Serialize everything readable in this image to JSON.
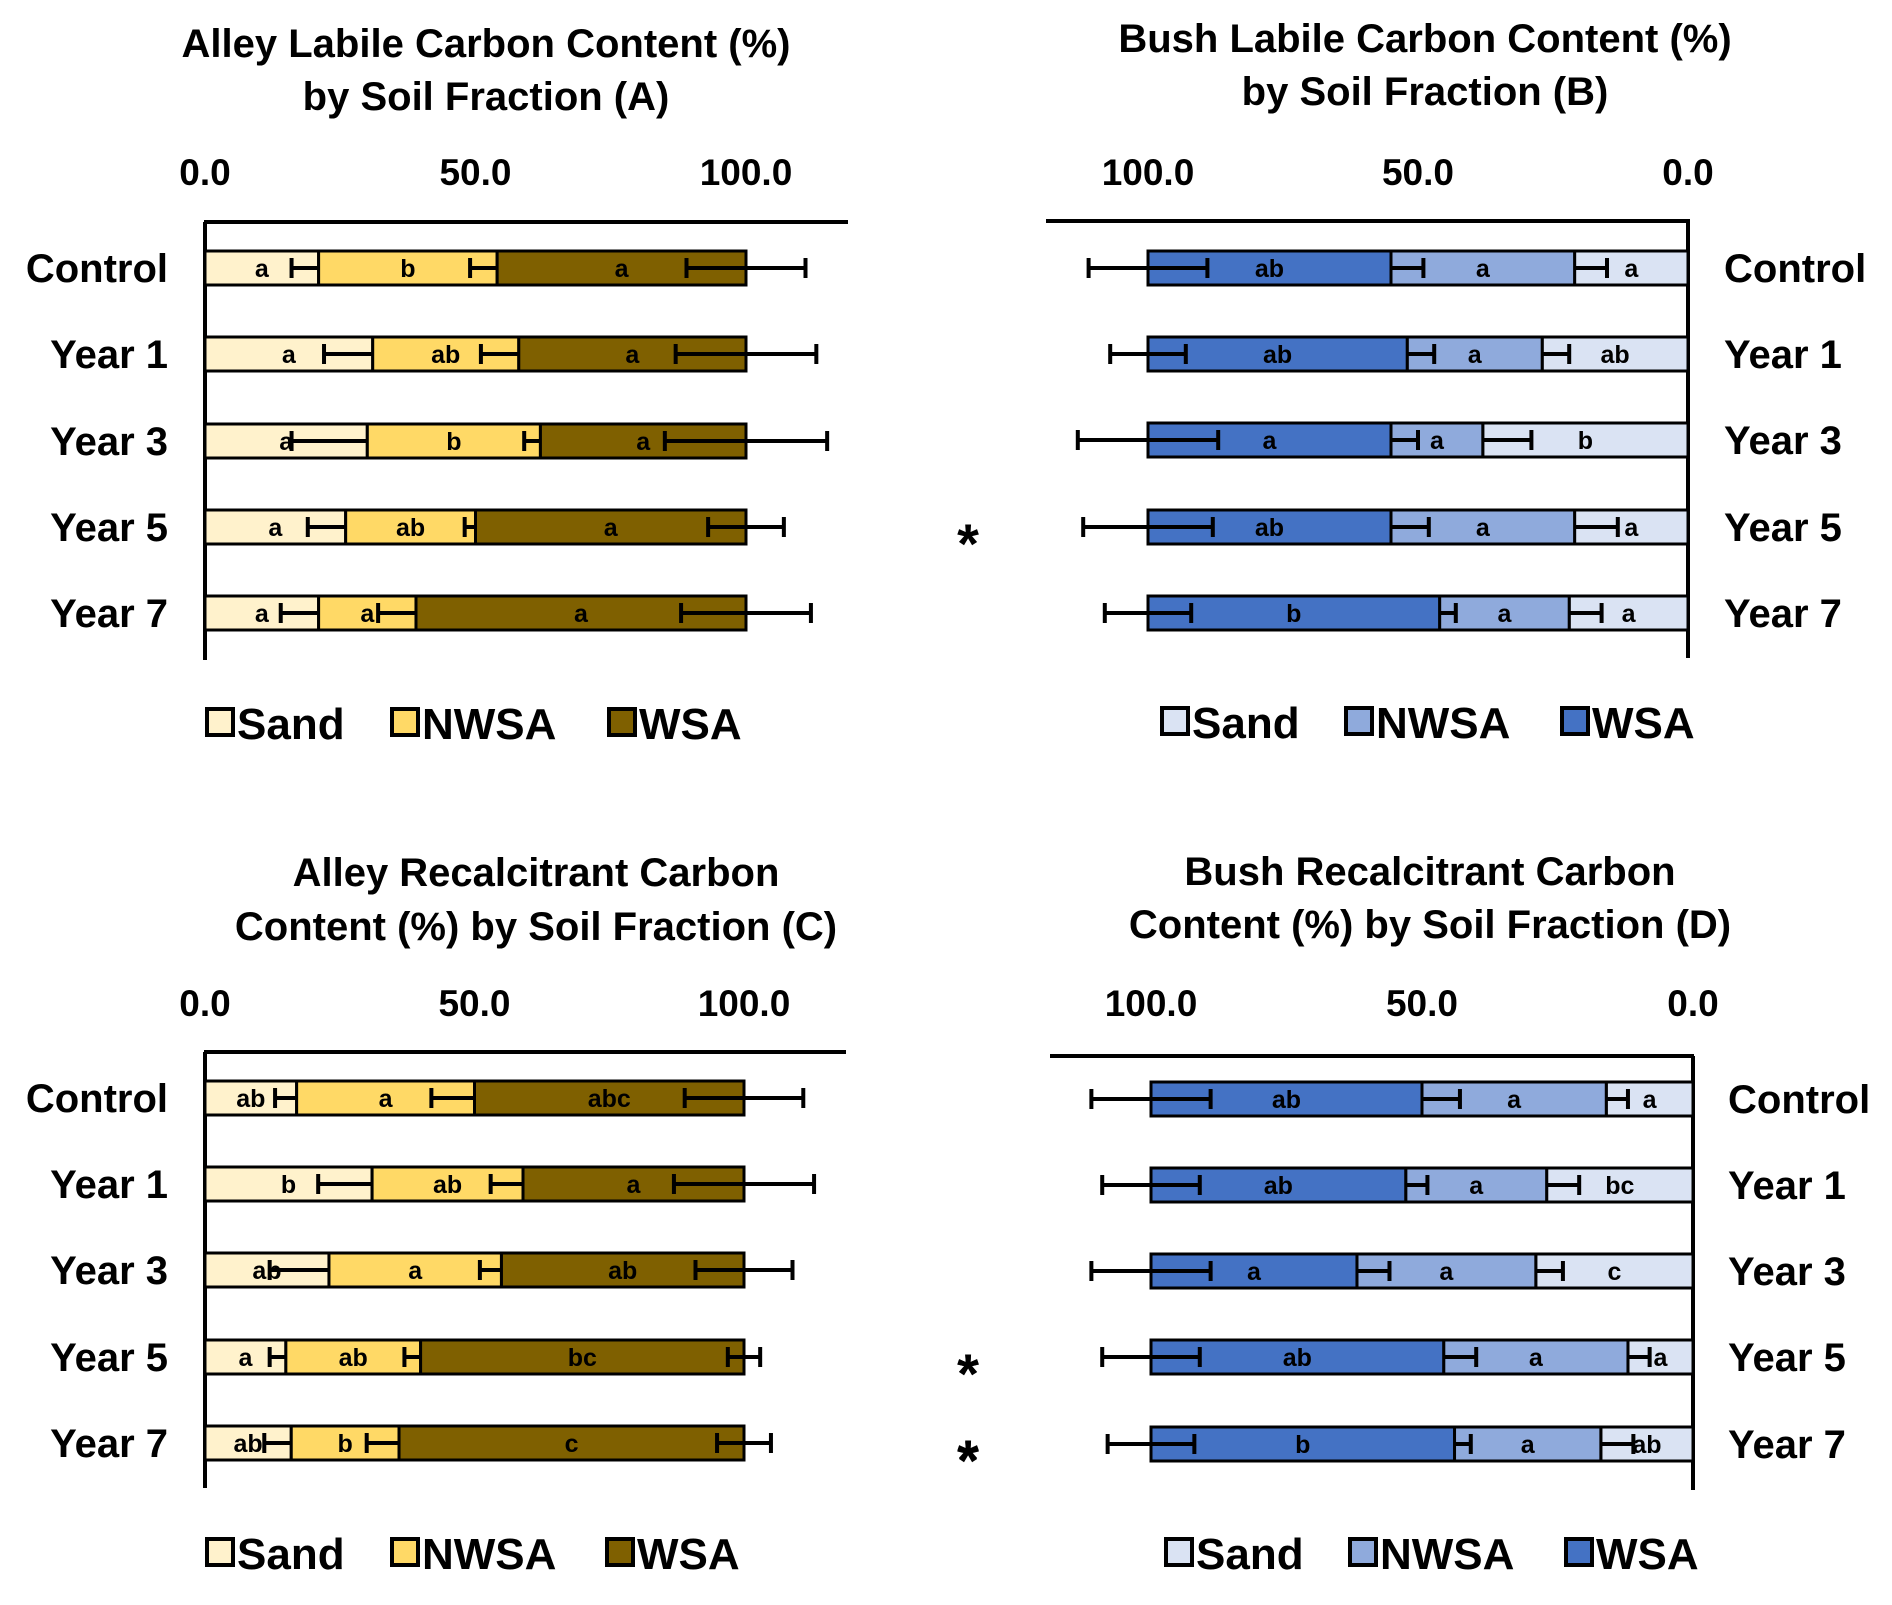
{
  "chart_data": [
    {
      "panel": "A",
      "type": "bar",
      "stacked": true,
      "orientation": "horizontal",
      "title": [
        "Alley Labile Carbon Content (%)",
        "by Soil Fraction  (A)"
      ],
      "ticks": [
        "0.0",
        "50.0",
        "100.0"
      ],
      "xlim": [
        0,
        120
      ],
      "reversed": false,
      "categories": [
        "Control",
        "Year  1",
        "Year 3",
        "Year 5",
        "Year 7"
      ],
      "significance": [
        "",
        "",
        "",
        "*",
        ""
      ],
      "series": [
        {
          "name": "Sand",
          "color": "#FFF2CC",
          "values": [
            21,
            31,
            30,
            26,
            21
          ],
          "errors": [
            5,
            9,
            14,
            7,
            7
          ],
          "letters": [
            "a",
            "a",
            "a",
            "a",
            "a"
          ]
        },
        {
          "name": "NWSA",
          "color": "#FFD966",
          "values": [
            33,
            27,
            32,
            24,
            18
          ],
          "errors": [
            5,
            7,
            3,
            2,
            7
          ],
          "letters": [
            "b",
            "ab",
            "b",
            "ab",
            "a"
          ]
        },
        {
          "name": "WSA",
          "color": "#7F6000",
          "values": [
            46,
            42,
            38,
            50,
            61
          ],
          "errors": [
            11,
            13,
            15,
            7,
            12
          ],
          "letters": [
            "a",
            "a",
            "a",
            "a",
            "a"
          ]
        }
      ]
    },
    {
      "panel": "B",
      "type": "bar",
      "stacked": true,
      "orientation": "horizontal",
      "title": [
        "Bush Labile Carbon Content (%)",
        "by Soil Fraction  (B)"
      ],
      "ticks": [
        "100.0",
        "50.0",
        "0.0"
      ],
      "xlim": [
        0,
        120
      ],
      "reversed": true,
      "categories": [
        "Control",
        "Year  1",
        "Year 3",
        "Year 5",
        "Year 7"
      ],
      "significance": [
        "",
        "",
        "",
        "",
        ""
      ],
      "series": [
        {
          "name": "Sand",
          "color": "#DAE3F3",
          "values": [
            21,
            27,
            38,
            21,
            22
          ],
          "errors": [
            6,
            5,
            9,
            8,
            6
          ],
          "letters": [
            "a",
            "ab",
            "b",
            "a",
            "a"
          ]
        },
        {
          "name": "NWSA",
          "color": "#8FAADC",
          "values": [
            34,
            25,
            17,
            34,
            24
          ],
          "errors": [
            6,
            5,
            5,
            7,
            3
          ],
          "letters": [
            "a",
            "a",
            "a",
            "a",
            "a"
          ]
        },
        {
          "name": "WSA",
          "color": "#4472C4",
          "values": [
            45,
            48,
            45,
            45,
            54
          ],
          "errors": [
            11,
            7,
            13,
            12,
            8
          ],
          "letters": [
            "ab",
            "ab",
            "a",
            "ab",
            "b"
          ]
        }
      ]
    },
    {
      "panel": "C",
      "type": "bar",
      "stacked": true,
      "orientation": "horizontal",
      "title": [
        "Alley Recalcitrant Carbon",
        "Content (%) by Soil Fraction (C)"
      ],
      "ticks": [
        "0.0",
        "50.0",
        "100.0"
      ],
      "xlim": [
        0,
        120
      ],
      "reversed": false,
      "categories": [
        "Control",
        "Year  1",
        "Year 3",
        "Year 5",
        "Year 7"
      ],
      "significance": [
        "",
        "",
        "",
        "*",
        "*"
      ],
      "series": [
        {
          "name": "Sand",
          "color": "#FFF2CC",
          "values": [
            17,
            31,
            23,
            15,
            16
          ],
          "errors": [
            4,
            10,
            11,
            3,
            5
          ],
          "letters": [
            "ab",
            "b",
            "ab",
            "a",
            "ab"
          ]
        },
        {
          "name": "NWSA",
          "color": "#FFD966",
          "values": [
            33,
            28,
            32,
            25,
            20
          ],
          "errors": [
            8,
            6,
            4,
            3,
            6
          ],
          "letters": [
            "a",
            "ab",
            "a",
            "ab",
            "b"
          ]
        },
        {
          "name": "WSA",
          "color": "#7F6000",
          "values": [
            50,
            41,
            45,
            60,
            64
          ],
          "errors": [
            11,
            13,
            9,
            3,
            5
          ],
          "letters": [
            "abc",
            "a",
            "ab",
            "bc",
            "c"
          ]
        }
      ]
    },
    {
      "panel": "D",
      "type": "bar",
      "stacked": true,
      "orientation": "horizontal",
      "title": [
        "Bush Recalcitrant Carbon",
        "Content (%) by Soil Fraction  (D)"
      ],
      "ticks": [
        "100.0",
        "50.0",
        "0.0"
      ],
      "xlim": [
        0,
        120
      ],
      "reversed": true,
      "categories": [
        "Control",
        "Year  1",
        "Year 3",
        "Year 5",
        "Year 7"
      ],
      "significance": [
        "",
        "",
        "",
        "*",
        "*"
      ],
      "series": [
        {
          "name": "Sand",
          "color": "#DAE3F3",
          "values": [
            16,
            27,
            29,
            12,
            17
          ],
          "errors": [
            4,
            6,
            5,
            4,
            6
          ],
          "letters": [
            "a",
            "bc",
            "c",
            "a",
            "ab"
          ]
        },
        {
          "name": "NWSA",
          "color": "#8FAADC",
          "values": [
            34,
            26,
            33,
            34,
            27
          ],
          "errors": [
            7,
            4,
            6,
            6,
            3
          ],
          "letters": [
            "a",
            "a",
            "a",
            "a",
            "a"
          ]
        },
        {
          "name": "WSA",
          "color": "#4472C4",
          "values": [
            50,
            47,
            38,
            54,
            56
          ],
          "errors": [
            11,
            9,
            11,
            9,
            8
          ],
          "letters": [
            "ab",
            "ab",
            "a",
            "ab",
            "b"
          ]
        }
      ]
    }
  ]
}
